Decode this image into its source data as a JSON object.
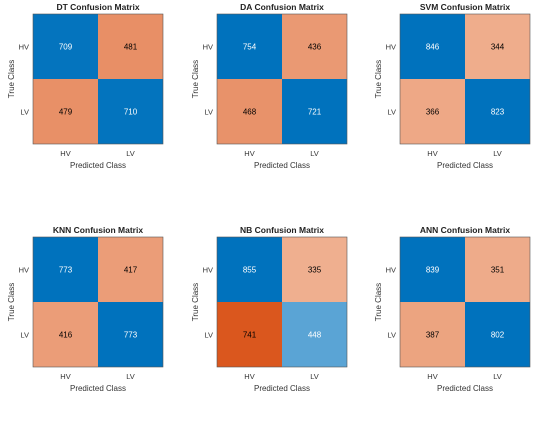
{
  "chart_data": [
    {
      "type": "heatmap",
      "title": "DT Confusion Matrix",
      "xlabel": "Predicted Class",
      "ylabel": "True Class",
      "x_categories": [
        "HV",
        "LV"
      ],
      "y_categories": [
        "HV",
        "LV"
      ],
      "values": [
        [
          709,
          481
        ],
        [
          479,
          710
        ]
      ]
    },
    {
      "type": "heatmap",
      "title": "DA Confusion Matrix",
      "xlabel": "Predicted Class",
      "ylabel": "True Class",
      "x_categories": [
        "HV",
        "LV"
      ],
      "y_categories": [
        "HV",
        "LV"
      ],
      "values": [
        [
          754,
          436
        ],
        [
          468,
          721
        ]
      ]
    },
    {
      "type": "heatmap",
      "title": "SVM Confusion Matrix",
      "xlabel": "Predicted Class",
      "ylabel": "True Class",
      "x_categories": [
        "HV",
        "LV"
      ],
      "y_categories": [
        "HV",
        "LV"
      ],
      "values": [
        [
          846,
          344
        ],
        [
          366,
          823
        ]
      ]
    },
    {
      "type": "heatmap",
      "title": "KNN Confusion Matrix",
      "xlabel": "Predicted Class",
      "ylabel": "True Class",
      "x_categories": [
        "HV",
        "LV"
      ],
      "y_categories": [
        "HV",
        "LV"
      ],
      "values": [
        [
          773,
          417
        ],
        [
          416,
          773
        ]
      ]
    },
    {
      "type": "heatmap",
      "title": "NB Confusion Matrix",
      "xlabel": "Predicted Class",
      "ylabel": "True Class",
      "x_categories": [
        "HV",
        "LV"
      ],
      "y_categories": [
        "HV",
        "LV"
      ],
      "values": [
        [
          855,
          335
        ],
        [
          741,
          448
        ]
      ]
    },
    {
      "type": "heatmap",
      "title": "ANN Confusion Matrix",
      "xlabel": "Predicted Class",
      "ylabel": "True Class",
      "x_categories": [
        "HV",
        "LV"
      ],
      "y_categories": [
        "HV",
        "LV"
      ],
      "values": [
        [
          839,
          351
        ],
        [
          387,
          802
        ]
      ]
    }
  ],
  "colors": {
    "correct_high": "#0072BD",
    "correct_low": "#5DA5D6",
    "error_low": "#F0B293",
    "error_high": "#D95319",
    "border": "#555555"
  },
  "color_scale": {
    "correct_light_at": 440,
    "correct_dark_at": 720,
    "error_light_at": 320,
    "error_dark_at": 760
  }
}
